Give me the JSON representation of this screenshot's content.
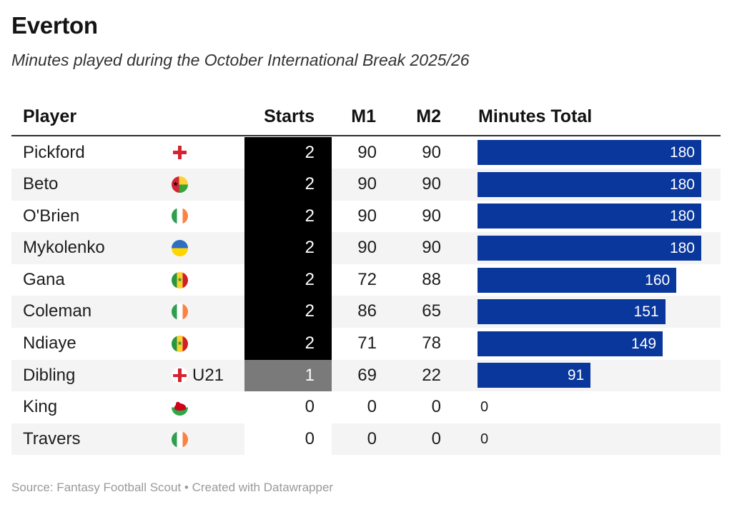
{
  "title": "Everton",
  "subtitle": "Minutes played during the October International Break 2025/26",
  "footer": "Source: Fantasy Football Scout • Created with Datawrapper",
  "colors": {
    "bar": "#0a379b",
    "starts_2_bg": "#000000",
    "starts_1_bg": "#7a7a7a",
    "stripe": "#f4f4f4"
  },
  "chart_data": {
    "type": "table",
    "title": "Everton",
    "subtitle": "Minutes played during the October International Break 2025/26",
    "columns": [
      "Player",
      "Starts",
      "M1",
      "M2",
      "Minutes Total"
    ],
    "bar_column": "Minutes Total",
    "bar_max": 180,
    "rows": [
      {
        "player": "Pickford",
        "flag": "england",
        "flag_note": "",
        "starts": 2,
        "m1": 90,
        "m2": 90,
        "total": 180
      },
      {
        "player": "Beto",
        "flag": "guinea-bissau",
        "flag_note": "",
        "starts": 2,
        "m1": 90,
        "m2": 90,
        "total": 180
      },
      {
        "player": "O'Brien",
        "flag": "ireland",
        "flag_note": "",
        "starts": 2,
        "m1": 90,
        "m2": 90,
        "total": 180
      },
      {
        "player": "Mykolenko",
        "flag": "ukraine",
        "flag_note": "",
        "starts": 2,
        "m1": 90,
        "m2": 90,
        "total": 180
      },
      {
        "player": "Gana",
        "flag": "senegal",
        "flag_note": "",
        "starts": 2,
        "m1": 72,
        "m2": 88,
        "total": 160
      },
      {
        "player": "Coleman",
        "flag": "ireland",
        "flag_note": "",
        "starts": 2,
        "m1": 86,
        "m2": 65,
        "total": 151
      },
      {
        "player": "Ndiaye",
        "flag": "senegal",
        "flag_note": "",
        "starts": 2,
        "m1": 71,
        "m2": 78,
        "total": 149
      },
      {
        "player": "Dibling",
        "flag": "england",
        "flag_note": "U21",
        "starts": 1,
        "m1": 69,
        "m2": 22,
        "total": 91
      },
      {
        "player": "King",
        "flag": "wales",
        "flag_note": "",
        "starts": 0,
        "m1": 0,
        "m2": 0,
        "total": 0
      },
      {
        "player": "Travers",
        "flag": "ireland",
        "flag_note": "",
        "starts": 0,
        "m1": 0,
        "m2": 0,
        "total": 0
      }
    ]
  }
}
